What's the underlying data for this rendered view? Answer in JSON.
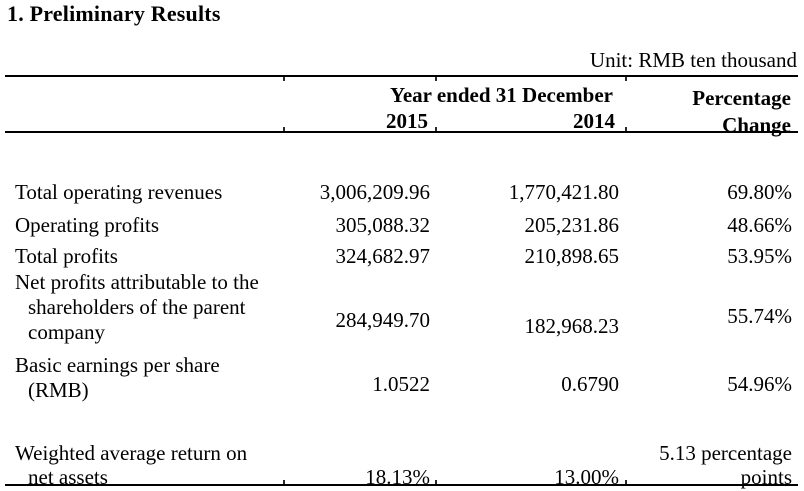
{
  "title": "1. Preliminary Results",
  "unit_note": "Unit: RMB ten thousand",
  "table": {
    "group_header": "Year ended 31 December",
    "headers": {
      "y2015": "2015",
      "y2014": "2014",
      "change": "Percentage\nChange"
    },
    "rows": [
      {
        "label": "Total operating revenues",
        "y2015": "3,006,209.96",
        "y2014": "1,770,421.80",
        "change": "69.80%"
      },
      {
        "label": "Operating profits",
        "y2015": "305,088.32",
        "y2014": "205,231.86",
        "change": "48.66%"
      },
      {
        "label": "Total profits",
        "y2015": "324,682.97",
        "y2014": "210,898.65",
        "change": "53.95%"
      },
      {
        "label": "Net profits attributable to the\nshareholders of the parent\ncompany",
        "y2015": "284,949.70",
        "y2014": "182,968.23",
        "change": "55.74%"
      },
      {
        "label": "Basic earnings per share\n(RMB)",
        "y2015": "1.0522",
        "y2014": "0.6790",
        "change": "54.96%"
      },
      {
        "label": "Weighted average return on\nnet assets",
        "y2015": "18.13%",
        "y2014": "13.00%",
        "change": "5.13 percentage\npoints"
      }
    ]
  }
}
